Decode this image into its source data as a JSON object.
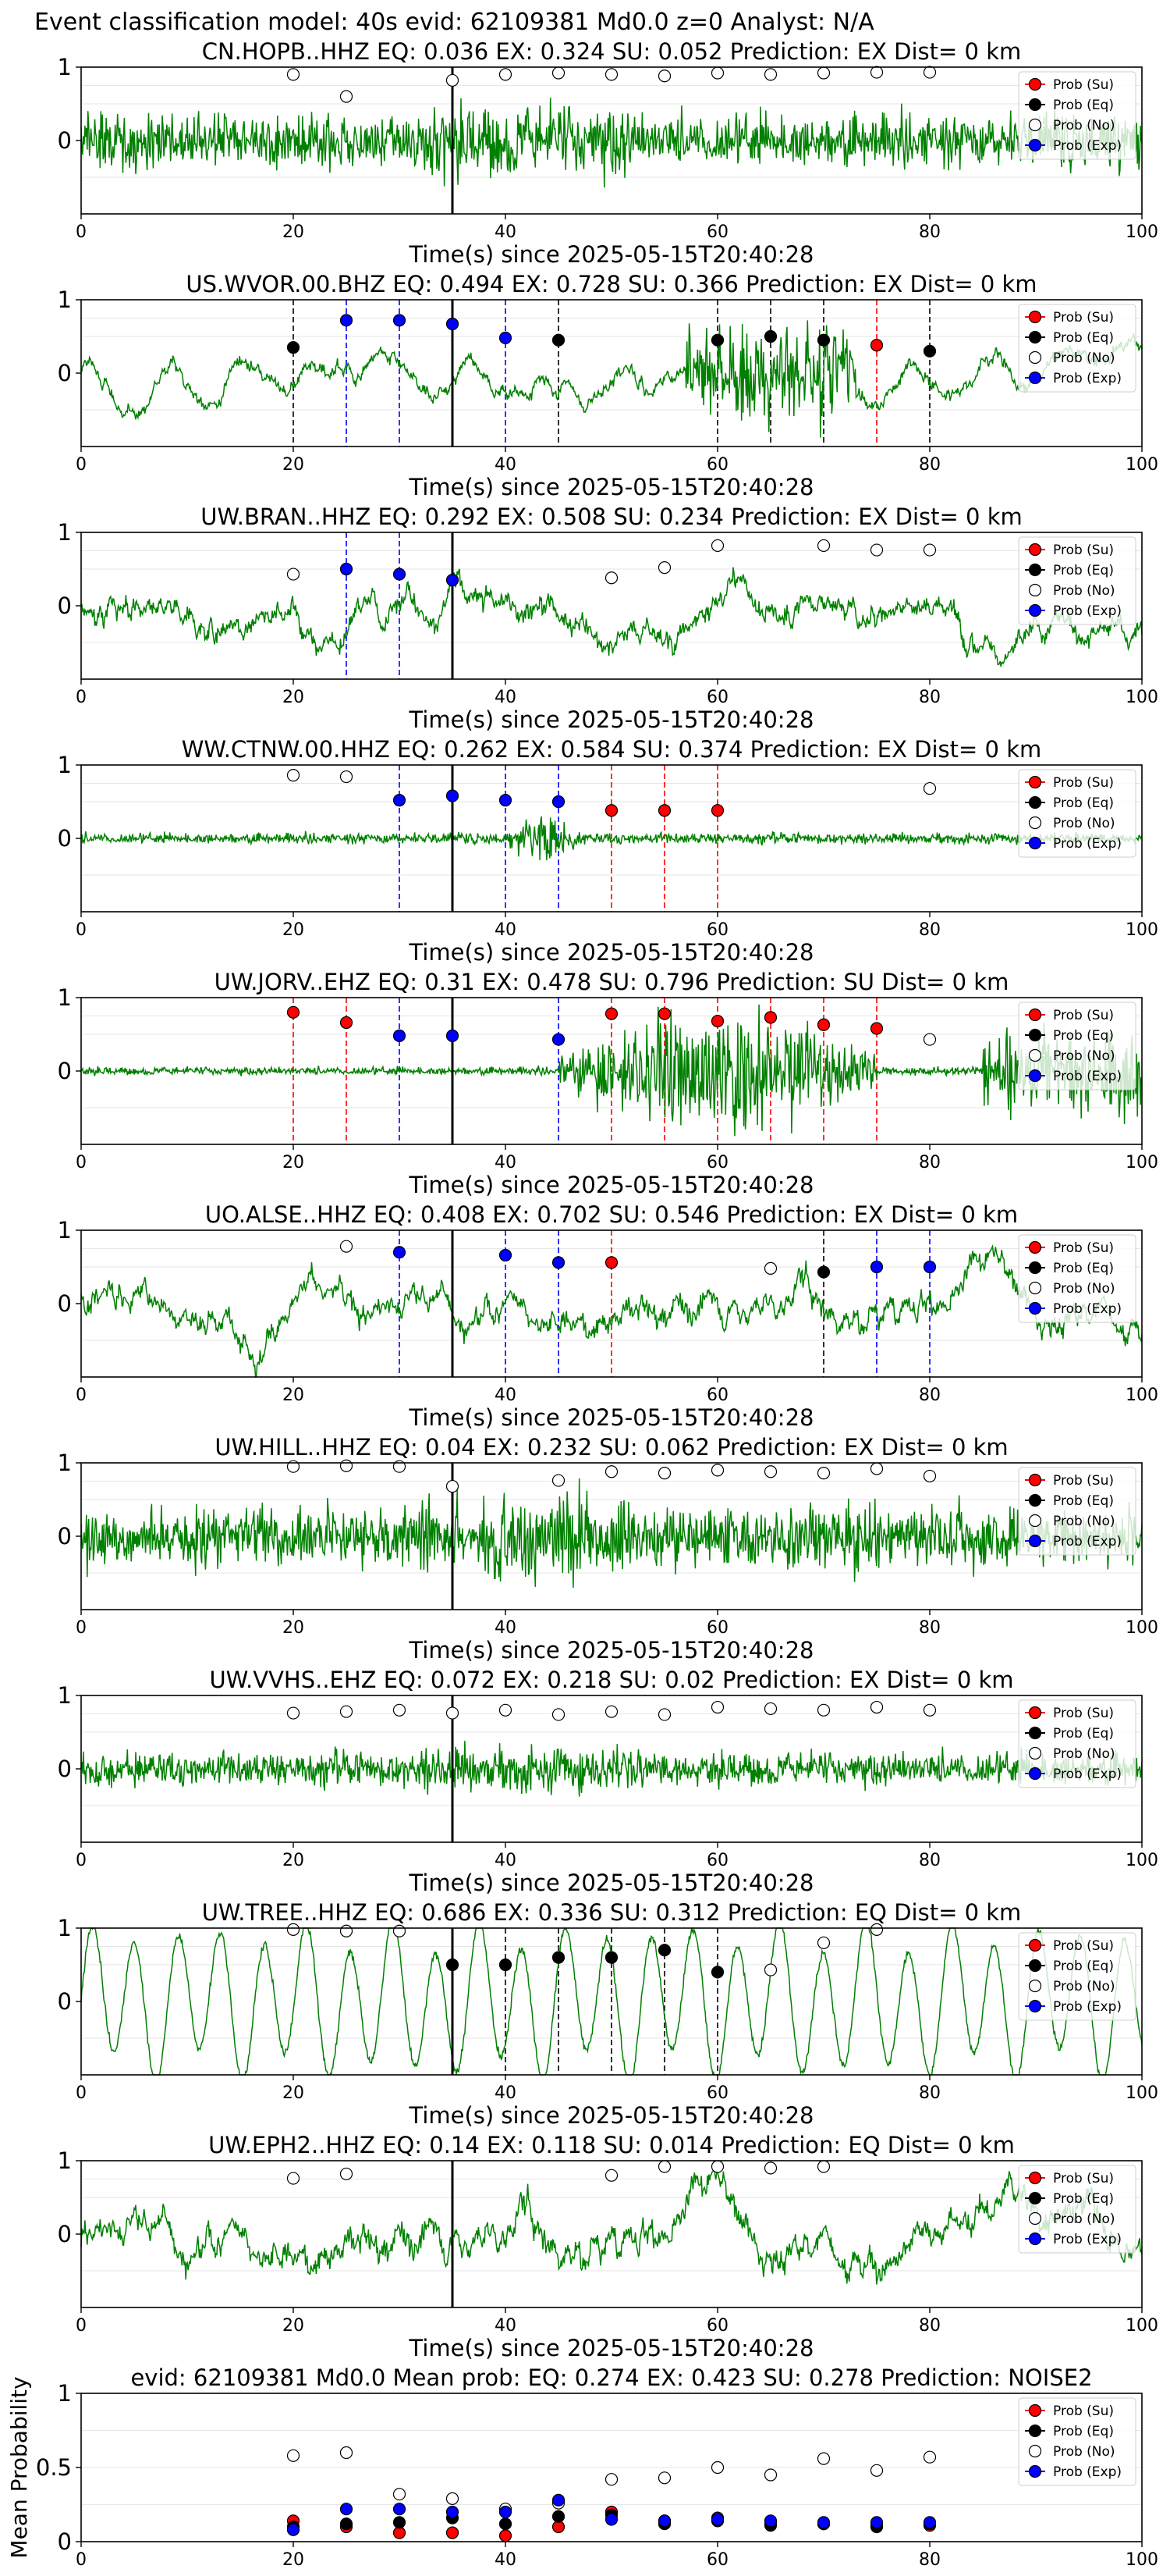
{
  "figure": {
    "suptitle": "Event classification model: 40s evid: 62109381 Md0.0 z=0 Analyst: N/A"
  },
  "legend": [
    "Prob (Su)",
    "Prob (Eq)",
    "Prob (No)",
    "Prob (Exp)"
  ],
  "colors": {
    "waveform": "#008000",
    "su": "#ff0000",
    "eq": "#000000",
    "no": "#ffffff",
    "exp": "#0000ff",
    "origin_line": "#000000"
  },
  "chart_data": [
    {
      "type": "line",
      "title": "CN.HOPB..HHZ    EQ: 0.036  EX: 0.324  SU: 0.052   Prediction: EX    Dist= 0 km",
      "xlabel": "Time(s) since 2025-05-15T20:40:28",
      "ylabel": "",
      "xlim": [
        0,
        100
      ],
      "ylim": [
        -1,
        1
      ],
      "xticks": [
        0,
        20,
        40,
        60,
        80,
        100
      ],
      "yticks": [
        0,
        1
      ],
      "origin_time": 35,
      "waveform_amp": 0.55,
      "waveform_style": "noise",
      "points": [
        {
          "t": 20,
          "y": 0.9,
          "cls": "no"
        },
        {
          "t": 25,
          "y": 0.6,
          "cls": "no"
        },
        {
          "t": 35,
          "y": 0.82,
          "cls": "no"
        },
        {
          "t": 40,
          "y": 0.9,
          "cls": "no"
        },
        {
          "t": 45,
          "y": 0.92,
          "cls": "no"
        },
        {
          "t": 50,
          "y": 0.9,
          "cls": "no"
        },
        {
          "t": 55,
          "y": 0.88,
          "cls": "no"
        },
        {
          "t": 60,
          "y": 0.92,
          "cls": "no"
        },
        {
          "t": 65,
          "y": 0.9,
          "cls": "no"
        },
        {
          "t": 70,
          "y": 0.92,
          "cls": "no"
        },
        {
          "t": 75,
          "y": 0.93,
          "cls": "no"
        },
        {
          "t": 80,
          "y": 0.93,
          "cls": "no"
        }
      ]
    },
    {
      "type": "line",
      "title": "US.WVOR.00.BHZ   EQ: 0.494  EX: 0.728  SU: 0.366   Prediction: EX    Dist= 0 km",
      "xlabel": "Time(s) since 2025-05-15T20:40:28",
      "ylabel": "",
      "xlim": [
        0,
        100
      ],
      "ylim": [
        -1,
        1
      ],
      "xticks": [
        0,
        20,
        40,
        60,
        80,
        100
      ],
      "yticks": [
        0,
        1
      ],
      "origin_time": 35,
      "waveform_amp": 0.8,
      "waveform_style": "burst",
      "points": [
        {
          "t": 20,
          "y": 0.35,
          "cls": "eq"
        },
        {
          "t": 25,
          "y": 0.72,
          "cls": "exp"
        },
        {
          "t": 30,
          "y": 0.72,
          "cls": "exp"
        },
        {
          "t": 35,
          "y": 0.67,
          "cls": "exp"
        },
        {
          "t": 40,
          "y": 0.48,
          "cls": "exp"
        },
        {
          "t": 45,
          "y": 0.45,
          "cls": "eq"
        },
        {
          "t": 60,
          "y": 0.45,
          "cls": "eq"
        },
        {
          "t": 65,
          "y": 0.5,
          "cls": "eq"
        },
        {
          "t": 70,
          "y": 0.45,
          "cls": "eq"
        },
        {
          "t": 75,
          "y": 0.38,
          "cls": "su"
        },
        {
          "t": 80,
          "y": 0.3,
          "cls": "eq"
        }
      ]
    },
    {
      "type": "line",
      "title": "UW.BRAN..HHZ   EQ: 0.292  EX: 0.508  SU: 0.234   Prediction: EX    Dist= 0 km",
      "xlabel": "Time(s) since 2025-05-15T20:40:28",
      "ylabel": "",
      "xlim": [
        0,
        100
      ],
      "ylim": [
        -1,
        1
      ],
      "xticks": [
        0,
        20,
        40,
        60,
        80,
        100
      ],
      "yticks": [
        0,
        1
      ],
      "origin_time": 35,
      "waveform_amp": 0.6,
      "waveform_style": "lowfreq",
      "points": [
        {
          "t": 20,
          "y": 0.43,
          "cls": "no"
        },
        {
          "t": 25,
          "y": 0.5,
          "cls": "exp"
        },
        {
          "t": 30,
          "y": 0.43,
          "cls": "exp"
        },
        {
          "t": 35,
          "y": 0.35,
          "cls": "exp"
        },
        {
          "t": 50,
          "y": 0.38,
          "cls": "no"
        },
        {
          "t": 55,
          "y": 0.52,
          "cls": "no"
        },
        {
          "t": 60,
          "y": 0.82,
          "cls": "no"
        },
        {
          "t": 70,
          "y": 0.82,
          "cls": "no"
        },
        {
          "t": 75,
          "y": 0.76,
          "cls": "no"
        },
        {
          "t": 80,
          "y": 0.76,
          "cls": "no"
        }
      ]
    },
    {
      "type": "line",
      "title": "WW.CTNW.00.HHZ   EQ: 0.262  EX: 0.584  SU: 0.374   Prediction: EX    Dist= 0 km",
      "xlabel": "Time(s) since 2025-05-15T20:40:28",
      "ylabel": "",
      "xlim": [
        0,
        100
      ],
      "ylim": [
        -1,
        1
      ],
      "xticks": [
        0,
        20,
        40,
        60,
        80,
        100
      ],
      "yticks": [
        0,
        1
      ],
      "origin_time": 35,
      "waveform_amp": 0.2,
      "waveform_style": "spike",
      "points": [
        {
          "t": 20,
          "y": 0.86,
          "cls": "no"
        },
        {
          "t": 25,
          "y": 0.84,
          "cls": "no"
        },
        {
          "t": 30,
          "y": 0.52,
          "cls": "exp"
        },
        {
          "t": 35,
          "y": 0.58,
          "cls": "exp"
        },
        {
          "t": 40,
          "y": 0.52,
          "cls": "exp"
        },
        {
          "t": 45,
          "y": 0.5,
          "cls": "exp"
        },
        {
          "t": 50,
          "y": 0.38,
          "cls": "su"
        },
        {
          "t": 55,
          "y": 0.38,
          "cls": "su"
        },
        {
          "t": 60,
          "y": 0.38,
          "cls": "su"
        },
        {
          "t": 80,
          "y": 0.68,
          "cls": "no"
        }
      ]
    },
    {
      "type": "line",
      "title": "UW.JORV..EHZ   EQ: 0.31  EX: 0.478  SU: 0.796   Prediction: SU    Dist= 0 km",
      "xlabel": "Time(s) since 2025-05-15T20:40:28",
      "ylabel": "",
      "xlim": [
        0,
        100
      ],
      "ylim": [
        -1,
        1
      ],
      "xticks": [
        0,
        20,
        40,
        60,
        80,
        100
      ],
      "yticks": [
        0,
        1
      ],
      "origin_time": 35,
      "waveform_amp": 0.9,
      "waveform_style": "twobursts",
      "points": [
        {
          "t": 20,
          "y": 0.8,
          "cls": "su"
        },
        {
          "t": 25,
          "y": 0.66,
          "cls": "su"
        },
        {
          "t": 30,
          "y": 0.48,
          "cls": "exp"
        },
        {
          "t": 35,
          "y": 0.48,
          "cls": "exp"
        },
        {
          "t": 45,
          "y": 0.43,
          "cls": "exp"
        },
        {
          "t": 50,
          "y": 0.78,
          "cls": "su"
        },
        {
          "t": 55,
          "y": 0.78,
          "cls": "su"
        },
        {
          "t": 60,
          "y": 0.68,
          "cls": "su"
        },
        {
          "t": 65,
          "y": 0.73,
          "cls": "su"
        },
        {
          "t": 70,
          "y": 0.63,
          "cls": "su"
        },
        {
          "t": 75,
          "y": 0.58,
          "cls": "su"
        },
        {
          "t": 80,
          "y": 0.43,
          "cls": "no"
        }
      ]
    },
    {
      "type": "line",
      "title": "UO.ALSE..HHZ   EQ: 0.408  EX: 0.702  SU: 0.546   Prediction: EX    Dist= 0 km",
      "xlabel": "Time(s) since 2025-05-15T20:40:28",
      "ylabel": "",
      "xlim": [
        0,
        100
      ],
      "ylim": [
        -1,
        1
      ],
      "xticks": [
        0,
        20,
        40,
        60,
        80,
        100
      ],
      "yticks": [
        0,
        1
      ],
      "origin_time": 35,
      "waveform_amp": 0.6,
      "waveform_style": "lowfreq",
      "points": [
        {
          "t": 25,
          "y": 0.78,
          "cls": "no"
        },
        {
          "t": 30,
          "y": 0.7,
          "cls": "exp"
        },
        {
          "t": 40,
          "y": 0.66,
          "cls": "exp"
        },
        {
          "t": 45,
          "y": 0.56,
          "cls": "exp"
        },
        {
          "t": 50,
          "y": 0.56,
          "cls": "su"
        },
        {
          "t": 65,
          "y": 0.48,
          "cls": "no"
        },
        {
          "t": 70,
          "y": 0.43,
          "cls": "eq"
        },
        {
          "t": 75,
          "y": 0.5,
          "cls": "exp"
        },
        {
          "t": 80,
          "y": 0.5,
          "cls": "exp"
        }
      ]
    },
    {
      "type": "line",
      "title": "UW.HILL..HHZ   EQ: 0.04  EX: 0.232  SU: 0.062   Prediction: EX    Dist= 0 km",
      "xlabel": "Time(s) since 2025-05-15T20:40:28",
      "ylabel": "",
      "xlim": [
        0,
        100
      ],
      "ylim": [
        -1,
        1
      ],
      "xticks": [
        0,
        20,
        40,
        60,
        80,
        100
      ],
      "yticks": [
        0,
        1
      ],
      "origin_time": 35,
      "waveform_amp": 0.65,
      "waveform_style": "noise",
      "points": [
        {
          "t": 20,
          "y": 0.95,
          "cls": "no"
        },
        {
          "t": 25,
          "y": 0.96,
          "cls": "no"
        },
        {
          "t": 30,
          "y": 0.95,
          "cls": "no"
        },
        {
          "t": 35,
          "y": 0.68,
          "cls": "no"
        },
        {
          "t": 45,
          "y": 0.76,
          "cls": "no"
        },
        {
          "t": 50,
          "y": 0.88,
          "cls": "no"
        },
        {
          "t": 55,
          "y": 0.86,
          "cls": "no"
        },
        {
          "t": 60,
          "y": 0.9,
          "cls": "no"
        },
        {
          "t": 65,
          "y": 0.88,
          "cls": "no"
        },
        {
          "t": 70,
          "y": 0.86,
          "cls": "no"
        },
        {
          "t": 75,
          "y": 0.92,
          "cls": "no"
        },
        {
          "t": 80,
          "y": 0.82,
          "cls": "no"
        }
      ]
    },
    {
      "type": "line",
      "title": "UW.VVHS..EHZ   EQ: 0.072  EX: 0.218  SU: 0.02   Prediction: EX    Dist= 0 km",
      "xlabel": "Time(s) since 2025-05-15T20:40:28",
      "ylabel": "",
      "xlim": [
        0,
        100
      ],
      "ylim": [
        -1,
        1
      ],
      "xticks": [
        0,
        20,
        40,
        60,
        80,
        100
      ],
      "yticks": [
        0,
        1
      ],
      "origin_time": 35,
      "waveform_amp": 0.35,
      "waveform_style": "noise",
      "points": [
        {
          "t": 20,
          "y": 0.76,
          "cls": "no"
        },
        {
          "t": 25,
          "y": 0.78,
          "cls": "no"
        },
        {
          "t": 30,
          "y": 0.8,
          "cls": "no"
        },
        {
          "t": 35,
          "y": 0.76,
          "cls": "no"
        },
        {
          "t": 40,
          "y": 0.8,
          "cls": "no"
        },
        {
          "t": 45,
          "y": 0.74,
          "cls": "no"
        },
        {
          "t": 50,
          "y": 0.78,
          "cls": "no"
        },
        {
          "t": 55,
          "y": 0.74,
          "cls": "no"
        },
        {
          "t": 60,
          "y": 0.84,
          "cls": "no"
        },
        {
          "t": 65,
          "y": 0.82,
          "cls": "no"
        },
        {
          "t": 70,
          "y": 0.8,
          "cls": "no"
        },
        {
          "t": 75,
          "y": 0.84,
          "cls": "no"
        },
        {
          "t": 80,
          "y": 0.8,
          "cls": "no"
        }
      ]
    },
    {
      "type": "line",
      "title": "UW.TREE..HHZ   EQ: 0.686  EX: 0.336  SU: 0.312   Prediction: EQ    Dist= 0 km",
      "xlabel": "Time(s) since 2025-05-15T20:40:28",
      "ylabel": "",
      "xlim": [
        0,
        100
      ],
      "ylim": [
        -1,
        1
      ],
      "xticks": [
        0,
        20,
        40,
        60,
        80,
        100
      ],
      "yticks": [
        0,
        1
      ],
      "origin_time": 35,
      "waveform_amp": 0.8,
      "waveform_style": "sine",
      "points": [
        {
          "t": 20,
          "y": 0.98,
          "cls": "no"
        },
        {
          "t": 25,
          "y": 0.96,
          "cls": "no"
        },
        {
          "t": 30,
          "y": 0.96,
          "cls": "no"
        },
        {
          "t": 35,
          "y": 0.5,
          "cls": "eq"
        },
        {
          "t": 40,
          "y": 0.5,
          "cls": "eq"
        },
        {
          "t": 45,
          "y": 0.6,
          "cls": "eq"
        },
        {
          "t": 50,
          "y": 0.6,
          "cls": "eq"
        },
        {
          "t": 55,
          "y": 0.7,
          "cls": "eq"
        },
        {
          "t": 60,
          "y": 0.4,
          "cls": "eq"
        },
        {
          "t": 65,
          "y": 0.43,
          "cls": "no"
        },
        {
          "t": 70,
          "y": 0.8,
          "cls": "no"
        },
        {
          "t": 75,
          "y": 0.98,
          "cls": "no"
        }
      ]
    },
    {
      "type": "line",
      "title": "UW.EPH2..HHZ   EQ: 0.14  EX: 0.118  SU: 0.014   Prediction: EQ    Dist= 0 km",
      "xlabel": "Time(s) since 2025-05-15T20:40:28",
      "ylabel": "",
      "xlim": [
        0,
        100
      ],
      "ylim": [
        -1,
        1
      ],
      "xticks": [
        0,
        20,
        40,
        60,
        80,
        100
      ],
      "yticks": [
        0,
        1
      ],
      "origin_time": 35,
      "waveform_amp": 0.7,
      "waveform_style": "lowfreq",
      "points": [
        {
          "t": 20,
          "y": 0.76,
          "cls": "no"
        },
        {
          "t": 25,
          "y": 0.82,
          "cls": "no"
        },
        {
          "t": 50,
          "y": 0.8,
          "cls": "no"
        },
        {
          "t": 55,
          "y": 0.92,
          "cls": "no"
        },
        {
          "t": 60,
          "y": 0.92,
          "cls": "no"
        },
        {
          "t": 65,
          "y": 0.9,
          "cls": "no"
        },
        {
          "t": 70,
          "y": 0.92,
          "cls": "no"
        }
      ]
    },
    {
      "type": "scatter",
      "title": "evid: 62109381  Md0.0   Mean prob:   EQ: 0.274  EX: 0.423  SU: 0.278   Prediction: NOISE2",
      "xlabel": "",
      "ylabel": "Mean Probability",
      "xlim": [
        0,
        100
      ],
      "ylim": [
        0,
        1
      ],
      "xticks": [
        0,
        20,
        40,
        60,
        80,
        100
      ],
      "yticks": [
        0,
        0.5,
        1
      ],
      "x": [
        20,
        25,
        30,
        35,
        40,
        45,
        50,
        55,
        60,
        65,
        70,
        75,
        80
      ],
      "series": [
        {
          "name": "Prob (Su)",
          "cls": "su",
          "values": [
            0.14,
            0.1,
            0.06,
            0.06,
            0.04,
            0.1,
            0.2,
            0.14,
            0.16,
            0.12,
            0.12,
            0.12,
            0.11
          ]
        },
        {
          "name": "Prob (Eq)",
          "cls": "eq",
          "values": [
            0.1,
            0.12,
            0.13,
            0.16,
            0.12,
            0.17,
            0.18,
            0.12,
            0.14,
            0.11,
            0.12,
            0.1,
            0.12
          ]
        },
        {
          "name": "Prob (No)",
          "cls": "no",
          "values": [
            0.58,
            0.6,
            0.32,
            0.29,
            0.22,
            0.26,
            0.42,
            0.43,
            0.5,
            0.45,
            0.56,
            0.48,
            0.57
          ]
        },
        {
          "name": "Prob (Exp)",
          "cls": "exp",
          "values": [
            0.08,
            0.22,
            0.22,
            0.2,
            0.2,
            0.28,
            0.15,
            0.14,
            0.15,
            0.14,
            0.13,
            0.13,
            0.13
          ]
        }
      ]
    }
  ]
}
